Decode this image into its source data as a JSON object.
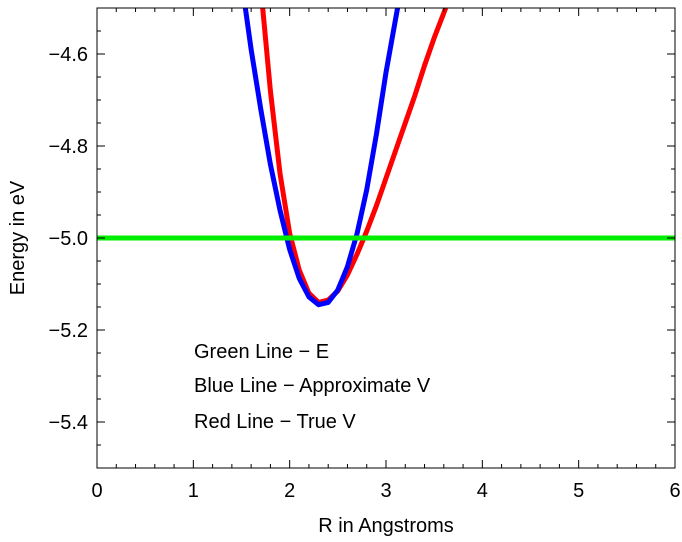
{
  "chart_data": {
    "type": "line",
    "title": "",
    "xlabel": "R in Angstroms",
    "ylabel": "Energy  in eV",
    "xlim": [
      0,
      6
    ],
    "ylim": [
      -5.5,
      -4.5
    ],
    "x_ticks": [
      0,
      1,
      2,
      3,
      4,
      5,
      6
    ],
    "x_tick_labels": [
      "0",
      "1",
      "2",
      "3",
      "4",
      "5",
      "6"
    ],
    "y_ticks": [
      -4.6,
      -4.8,
      -5.0,
      -5.2,
      -5.4
    ],
    "y_tick_labels": [
      "−4.6",
      "−4.8",
      "−5.0",
      "−5.2",
      "−5.4"
    ],
    "grid": false,
    "series": [
      {
        "key": "true_v",
        "color": "#ff0000",
        "x": [
          1.72,
          1.8,
          1.9,
          2.0,
          2.1,
          2.2,
          2.3,
          2.4,
          2.5,
          2.6,
          2.7,
          2.8,
          2.9,
          3.0,
          3.1,
          3.2,
          3.3,
          3.4,
          3.5,
          3.62
        ],
        "values": [
          -4.5,
          -4.68,
          -4.86,
          -4.99,
          -5.07,
          -5.12,
          -5.14,
          -5.135,
          -5.115,
          -5.08,
          -5.035,
          -4.985,
          -4.93,
          -4.87,
          -4.81,
          -4.75,
          -4.69,
          -4.625,
          -4.565,
          -4.5
        ]
      },
      {
        "key": "approx_v",
        "color": "#0000ff",
        "x": [
          1.54,
          1.6,
          1.7,
          1.8,
          1.9,
          2.0,
          2.1,
          2.2,
          2.3,
          2.4,
          2.5,
          2.6,
          2.7,
          2.8,
          2.9,
          3.0,
          3.12
        ],
        "values": [
          -4.5,
          -4.59,
          -4.72,
          -4.84,
          -4.94,
          -5.025,
          -5.088,
          -5.128,
          -5.145,
          -5.14,
          -5.113,
          -5.062,
          -4.99,
          -4.895,
          -4.775,
          -4.64,
          -4.5
        ]
      },
      {
        "key": "energy_e",
        "color": "#00ee00",
        "x": [
          0,
          6
        ],
        "values": [
          -5.0,
          -5.0
        ]
      }
    ],
    "annotations": [
      "Green Line − E",
      "Blue Line − Approximate V",
      "Red Line − True V"
    ]
  }
}
